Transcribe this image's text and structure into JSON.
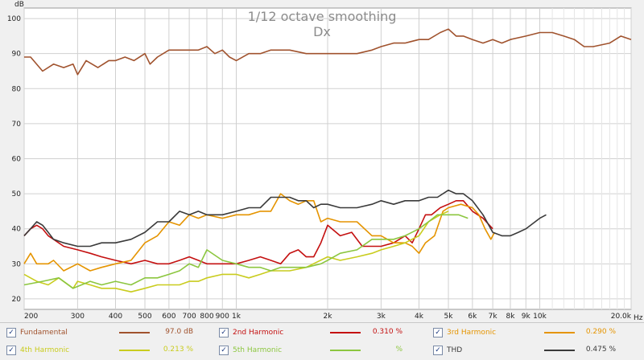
{
  "chart_data": {
    "type": "line",
    "title": "1/12 octave smoothing",
    "subtitle": "Dx",
    "ylabel": "dB",
    "xlabel_unit": "Hz",
    "xscale": "log",
    "xlim": [
      200,
      20000
    ],
    "ylim": [
      17,
      103
    ],
    "y_ticks": [
      20,
      30,
      40,
      50,
      60,
      70,
      80,
      90,
      100
    ],
    "x_ticks": [
      {
        "v": 200,
        "label": "200"
      },
      {
        "v": 300,
        "label": "300"
      },
      {
        "v": 400,
        "label": "400"
      },
      {
        "v": 500,
        "label": "500"
      },
      {
        "v": 600,
        "label": "600"
      },
      {
        "v": 700,
        "label": "700"
      },
      {
        "v": 800,
        "label": "800"
      },
      {
        "v": 900,
        "label": "900"
      },
      {
        "v": 1000,
        "label": "1k"
      },
      {
        "v": 2000,
        "label": "2k"
      },
      {
        "v": 3000,
        "label": "3k"
      },
      {
        "v": 4000,
        "label": "4k"
      },
      {
        "v": 5000,
        "label": "5k"
      },
      {
        "v": 6000,
        "label": "6k"
      },
      {
        "v": 7000,
        "label": "7k"
      },
      {
        "v": 8000,
        "label": "8k"
      },
      {
        "v": 9000,
        "label": "9k"
      },
      {
        "v": 10000,
        "label": "10k"
      },
      {
        "v": 20000,
        "label": "20.0k"
      }
    ],
    "grid": true,
    "series": [
      {
        "name": "Fundamental",
        "color": "#a0522d",
        "x": [
          200,
          210,
          230,
          250,
          270,
          290,
          300,
          320,
          350,
          380,
          400,
          430,
          460,
          500,
          520,
          550,
          600,
          650,
          700,
          750,
          800,
          850,
          900,
          950,
          1000,
          1100,
          1200,
          1300,
          1500,
          1700,
          2000,
          2200,
          2500,
          2800,
          3000,
          3300,
          3600,
          4000,
          4300,
          4700,
          5000,
          5300,
          5600,
          6000,
          6500,
          7000,
          7500,
          8000,
          9000,
          10000,
          10500,
          11000,
          12000,
          13000,
          14000,
          15000,
          17000,
          18500,
          20000
        ],
        "y": [
          89,
          89,
          85,
          87,
          86,
          87,
          84,
          88,
          86,
          88,
          88,
          89,
          88,
          90,
          87,
          89,
          91,
          91,
          91,
          91,
          92,
          90,
          91,
          89,
          88,
          90,
          90,
          91,
          91,
          90,
          90,
          90,
          90,
          91,
          92,
          93,
          93,
          94,
          94,
          96,
          97,
          95,
          95,
          94,
          93,
          94,
          93,
          94,
          95,
          96,
          96,
          96,
          95,
          94,
          92,
          92,
          93,
          95,
          94
        ]
      },
      {
        "name": "2nd Harmonic",
        "color": "#c41010",
        "x": [
          200,
          210,
          220,
          230,
          240,
          250,
          270,
          300,
          330,
          360,
          400,
          450,
          500,
          550,
          600,
          650,
          700,
          750,
          800,
          900,
          1000,
          1100,
          1200,
          1300,
          1400,
          1500,
          1600,
          1700,
          1800,
          1900,
          2000,
          2200,
          2400,
          2600,
          2800,
          3000,
          3300,
          3600,
          3800,
          4000,
          4200,
          4400,
          4700,
          5000,
          5300,
          5600,
          6000,
          6500,
          7000
        ],
        "y": [
          38,
          40,
          41,
          40,
          38,
          37,
          35,
          34,
          33,
          32,
          31,
          30,
          31,
          30,
          30,
          31,
          32,
          31,
          30,
          30,
          30,
          31,
          32,
          31,
          30,
          33,
          34,
          32,
          32,
          36,
          41,
          38,
          39,
          35,
          35,
          35,
          36,
          38,
          36,
          40,
          44,
          44,
          46,
          47,
          48,
          48,
          45,
          43,
          40
        ]
      },
      {
        "name": "3rd Harmonic",
        "color": "#e59400",
        "x": [
          200,
          210,
          220,
          240,
          250,
          270,
          300,
          330,
          360,
          400,
          450,
          500,
          550,
          600,
          650,
          700,
          750,
          800,
          900,
          1000,
          1100,
          1200,
          1300,
          1400,
          1500,
          1600,
          1700,
          1800,
          1900,
          2000,
          2200,
          2500,
          2800,
          3000,
          3300,
          3600,
          3800,
          4000,
          4200,
          4500,
          4800,
          5000,
          5500,
          6000,
          6300,
          6600,
          6900,
          7100
        ],
        "y": [
          30,
          33,
          30,
          30,
          31,
          28,
          30,
          28,
          29,
          30,
          31,
          36,
          38,
          42,
          41,
          44,
          43,
          44,
          43,
          44,
          44,
          45,
          45,
          50,
          48,
          47,
          48,
          48,
          42,
          43,
          42,
          42,
          38,
          38,
          36,
          36,
          35,
          33,
          36,
          38,
          45,
          46,
          47,
          46,
          44,
          40,
          37,
          39
        ]
      },
      {
        "name": "4th Harmonic",
        "color": "#c9cc1e",
        "x": [
          200,
          220,
          240,
          260,
          290,
          300,
          330,
          360,
          400,
          450,
          500,
          550,
          600,
          650,
          700,
          750,
          800,
          900,
          1000,
          1100,
          1200,
          1300,
          1500,
          1700,
          2000,
          2200,
          2500,
          2800,
          3000,
          3300,
          3600,
          4000,
          4300,
          4700,
          5000
        ],
        "y": [
          27,
          25,
          24,
          26,
          23,
          25,
          24,
          23,
          23,
          22,
          23,
          24,
          24,
          24,
          25,
          25,
          26,
          27,
          27,
          26,
          27,
          28,
          28,
          29,
          32,
          31,
          32,
          33,
          34,
          35,
          36,
          38,
          42,
          44,
          45
        ]
      },
      {
        "name": "5th Harmonic",
        "color": "#8cc63f",
        "x": [
          200,
          230,
          260,
          290,
          330,
          360,
          400,
          450,
          500,
          550,
          600,
          650,
          700,
          750,
          800,
          900,
          1000,
          1100,
          1200,
          1300,
          1400,
          1500,
          1700,
          1900,
          2000,
          2200,
          2500,
          2800,
          3000,
          3300,
          3600,
          4000,
          4300,
          4600,
          5000,
          5400,
          5800
        ],
        "y": [
          24,
          25,
          26,
          23,
          25,
          24,
          25,
          24,
          26,
          26,
          27,
          28,
          30,
          29,
          34,
          31,
          30,
          29,
          29,
          28,
          29,
          29,
          29,
          30,
          31,
          33,
          34,
          37,
          37,
          37,
          38,
          40,
          42,
          44,
          44,
          44,
          43
        ]
      },
      {
        "name": "THD",
        "color": "#3a3a3a",
        "x": [
          200,
          210,
          220,
          230,
          240,
          250,
          270,
          300,
          330,
          360,
          400,
          450,
          500,
          550,
          600,
          650,
          700,
          750,
          800,
          900,
          1000,
          1100,
          1200,
          1300,
          1400,
          1500,
          1600,
          1700,
          1800,
          1900,
          2000,
          2200,
          2500,
          2800,
          3000,
          3300,
          3600,
          4000,
          4300,
          4600,
          5000,
          5300,
          5600,
          6000,
          6500,
          7000,
          7500,
          8000,
          8500,
          9000,
          10000,
          10500
        ],
        "y": [
          38,
          40,
          42,
          41,
          39,
          37,
          36,
          35,
          35,
          36,
          36,
          37,
          39,
          42,
          42,
          45,
          44,
          45,
          44,
          44,
          45,
          46,
          46,
          49,
          49,
          49,
          48,
          48,
          46,
          47,
          47,
          46,
          46,
          47,
          48,
          47,
          48,
          48,
          49,
          49,
          51,
          50,
          50,
          48,
          44,
          39,
          38,
          38,
          39,
          40,
          43,
          44
        ]
      }
    ],
    "legend_placement": "bottom"
  },
  "legend": [
    {
      "label": "Fundamental",
      "value": "97.0 dB",
      "checked": true
    },
    {
      "label": "2nd Harmonic",
      "value": "0.310 %",
      "checked": true
    },
    {
      "label": "3rd Harmonic",
      "value": "0.290 %",
      "checked": true
    },
    {
      "label": "4th Harmonic",
      "value": "0.213 %",
      "checked": true
    },
    {
      "label": "5th Harmonic",
      "value": "%",
      "checked": true
    },
    {
      "label": "THD",
      "value": "0.475 %",
      "checked": true
    }
  ],
  "colors": {
    "background": "#ffffff",
    "grid": "#d0d0d0"
  }
}
